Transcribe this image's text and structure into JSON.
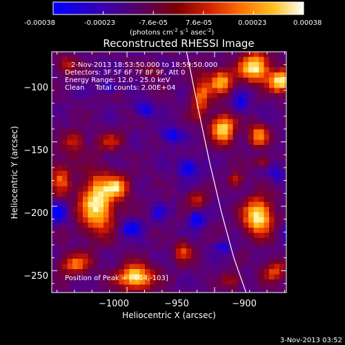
{
  "colorbar": {
    "ticks": [
      "-0.00038",
      "-0.00023",
      "-7.6e-05",
      "7.6e-05",
      "0.00023",
      "0.00038"
    ],
    "unit_label": "(photons cm",
    "unit_exp1": "-2",
    "unit_mid": " s",
    "unit_exp2": "-1",
    "unit_mid2": " asec",
    "unit_exp3": "-2",
    "unit_end": ")",
    "colors": [
      "#0000ff",
      "#3a00a0",
      "#600040",
      "#800000",
      "#c02000",
      "#ff6000",
      "#ffb000",
      "#ffff60",
      "#ffffff"
    ]
  },
  "chart_data": {
    "type": "heatmap",
    "title": "Reconstructed RHESSI Image",
    "xlabel": "Heliocentric X (arcsec)",
    "ylabel": "Heliocentric Y (arcsec)",
    "xlim": [
      -1043,
      -909
    ],
    "ylim": [
      -267,
      -80
    ],
    "x_ticks": [
      -1000,
      -950,
      -900
    ],
    "x_tick_labels": [
      "−1000",
      "−950",
      "−900"
    ],
    "y_ticks": [
      -100,
      -150,
      -200,
      -250
    ],
    "y_tick_labels": [
      "−100",
      "−150",
      "−200",
      "−250"
    ],
    "value_range": [
      -0.00038,
      0.00038
    ],
    "peak": [
      -914,
      -103
    ],
    "limb_curve": {
      "x": [
        -966,
        -960,
        -953,
        -946,
        -939,
        -932
      ],
      "y": [
        -80,
        -120,
        -165,
        -205,
        -240,
        -267
      ]
    },
    "blobs": [
      {
        "x": -927,
        "y": -92,
        "sx": 6,
        "sy": 8,
        "v": 1.0
      },
      {
        "x": -912,
        "y": -103,
        "sx": 5,
        "sy": 6,
        "v": 1.0
      },
      {
        "x": -946,
        "y": -103,
        "sx": 5,
        "sy": 7,
        "v": 0.75
      },
      {
        "x": -958,
        "y": -115,
        "sx": 4,
        "sy": 12,
        "v": 0.6
      },
      {
        "x": -945,
        "y": -140,
        "sx": 5,
        "sy": 8,
        "v": 0.9
      },
      {
        "x": -925,
        "y": -145,
        "sx": 4,
        "sy": 6,
        "v": 0.7
      },
      {
        "x": -1010,
        "y": -150,
        "sx": 6,
        "sy": 5,
        "v": 0.35
      },
      {
        "x": -1017,
        "y": -198,
        "sx": 7,
        "sy": 16,
        "v": 1.0
      },
      {
        "x": -1005,
        "y": -185,
        "sx": 5,
        "sy": 6,
        "v": 0.7
      },
      {
        "x": -1038,
        "y": -178,
        "sx": 4,
        "sy": 10,
        "v": 0.55
      },
      {
        "x": -1030,
        "y": -150,
        "sx": 4,
        "sy": 6,
        "v": 0.5
      },
      {
        "x": -925,
        "y": -208,
        "sx": 6,
        "sy": 10,
        "v": 1.0
      },
      {
        "x": -960,
        "y": -195,
        "sx": 4,
        "sy": 5,
        "v": 0.45
      },
      {
        "x": -938,
        "y": -180,
        "sx": 3,
        "sy": 5,
        "v": 0.4
      },
      {
        "x": -995,
        "y": -255,
        "sx": 7,
        "sy": 7,
        "v": 1.0
      },
      {
        "x": -1030,
        "y": -245,
        "sx": 6,
        "sy": 6,
        "v": 0.6
      },
      {
        "x": -968,
        "y": -235,
        "sx": 4,
        "sy": 6,
        "v": 0.5
      },
      {
        "x": -916,
        "y": -250,
        "sx": 5,
        "sy": 6,
        "v": 0.5
      },
      {
        "x": -940,
        "y": -258,
        "sx": 4,
        "sy": 4,
        "v": 0.4
      },
      {
        "x": -1035,
        "y": -90,
        "sx": 4,
        "sy": 5,
        "v": 0.45
      },
      {
        "x": -985,
        "y": -95,
        "sx": 4,
        "sy": 4,
        "v": 0.3
      },
      {
        "x": -990,
        "y": -125,
        "sx": 4,
        "sy": 4,
        "v": -0.5
      },
      {
        "x": -975,
        "y": -145,
        "sx": 4,
        "sy": 4,
        "v": -0.55
      },
      {
        "x": -965,
        "y": -170,
        "sx": 4,
        "sy": 5,
        "v": -0.6
      },
      {
        "x": -935,
        "y": -120,
        "sx": 3,
        "sy": 5,
        "v": -0.5
      },
      {
        "x": -960,
        "y": -210,
        "sx": 3,
        "sy": 5,
        "v": -0.6
      },
      {
        "x": -998,
        "y": -217,
        "sx": 4,
        "sy": 4,
        "v": -0.55
      },
      {
        "x": -905,
        "y": -222,
        "sx": 4,
        "sy": 5,
        "v": -0.55
      },
      {
        "x": -945,
        "y": -232,
        "sx": 3,
        "sy": 3,
        "v": -0.4
      },
      {
        "x": -1040,
        "y": -205,
        "sx": 4,
        "sy": 6,
        "v": -0.5
      },
      {
        "x": -1010,
        "y": -108,
        "sx": 3,
        "sy": 3,
        "v": -0.45
      },
      {
        "x": -915,
        "y": -175,
        "sx": 3,
        "sy": 4,
        "v": -0.4
      },
      {
        "x": -922,
        "y": -165,
        "sx": 3,
        "sy": 3,
        "v": 0.45
      },
      {
        "x": -982,
        "y": -205,
        "sx": 3,
        "sy": 4,
        "v": -0.35
      }
    ]
  },
  "annotations": {
    "time_range": "2-Nov-2013 18:53:50.000 to 18:59:50.000",
    "detectors": "Detectors: 3F 5F 6F 7F 8F 9F, Att 0",
    "energy": "Energy Range: 12.0 - 25.0 keV",
    "clean": "Clean     Total counts: 2.00E+04",
    "peak_label": "Position of Peak = [-914,-103]"
  },
  "footer": {
    "timestamp": "3-Nov-2013 03:52"
  }
}
